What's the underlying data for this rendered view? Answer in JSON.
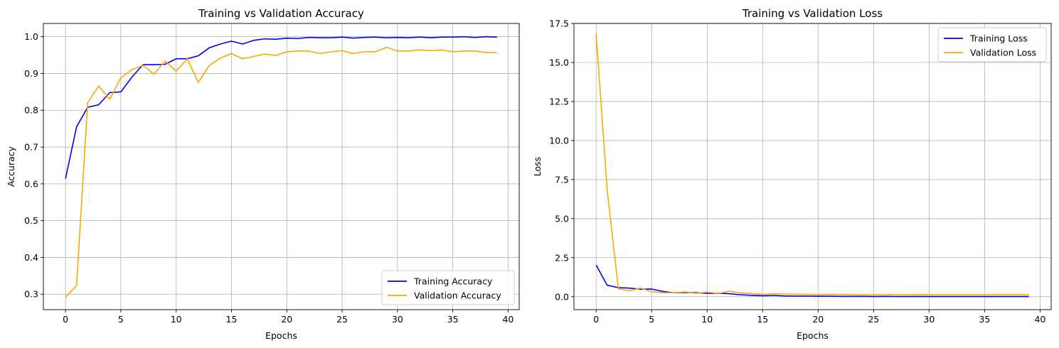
{
  "chart_data": [
    {
      "type": "line",
      "title": "Training vs Validation Accuracy",
      "xlabel": "Epochs",
      "ylabel": "Accuracy",
      "xlim": [
        -2,
        41
      ],
      "ylim": [
        0.258,
        1.036
      ],
      "xticks": [
        0,
        5,
        10,
        15,
        20,
        25,
        30,
        35,
        40
      ],
      "yticks": [
        0.3,
        0.4,
        0.5,
        0.6,
        0.7,
        0.8,
        0.9,
        1.0
      ],
      "xtick_labels": [
        "0",
        "5",
        "10",
        "15",
        "20",
        "25",
        "30",
        "35",
        "40"
      ],
      "ytick_labels": [
        "0.3",
        "0.4",
        "0.5",
        "0.6",
        "0.7",
        "0.8",
        "0.9",
        "1.0"
      ],
      "grid": true,
      "legend_position": "lower right",
      "x": [
        0,
        1,
        2,
        3,
        4,
        5,
        6,
        7,
        8,
        9,
        10,
        11,
        12,
        13,
        14,
        15,
        16,
        17,
        18,
        19,
        20,
        21,
        22,
        23,
        24,
        25,
        26,
        27,
        28,
        29,
        30,
        31,
        32,
        33,
        34,
        35,
        36,
        37,
        38,
        39
      ],
      "series": [
        {
          "name": "Training Accuracy",
          "color": "#0000ff",
          "values": [
            0.614,
            0.755,
            0.808,
            0.815,
            0.848,
            0.85,
            0.89,
            0.924,
            0.924,
            0.925,
            0.94,
            0.94,
            0.948,
            0.97,
            0.98,
            0.988,
            0.98,
            0.99,
            0.994,
            0.993,
            0.996,
            0.995,
            0.998,
            0.997,
            0.997,
            0.999,
            0.996,
            0.998,
            0.999,
            0.997,
            0.998,
            0.997,
            0.999,
            0.997,
            0.999,
            0.999,
            1.0,
            0.998,
            1.0,
            0.999
          ]
        },
        {
          "name": "Validation Accuracy",
          "color": "#ffa500",
          "values": [
            0.292,
            0.323,
            0.82,
            0.866,
            0.83,
            0.888,
            0.91,
            0.922,
            0.898,
            0.934,
            0.906,
            0.94,
            0.876,
            0.922,
            0.942,
            0.954,
            0.94,
            0.946,
            0.953,
            0.949,
            0.959,
            0.961,
            0.961,
            0.954,
            0.959,
            0.962,
            0.954,
            0.959,
            0.959,
            0.971,
            0.961,
            0.961,
            0.964,
            0.962,
            0.964,
            0.959,
            0.961,
            0.961,
            0.957,
            0.957
          ]
        }
      ]
    },
    {
      "type": "line",
      "title": "Training vs Validation Loss",
      "xlabel": "Epochs",
      "ylabel": "Loss",
      "xlim": [
        -2,
        41
      ],
      "ylim": [
        -0.83,
        17.5
      ],
      "xticks": [
        0,
        5,
        10,
        15,
        20,
        25,
        30,
        35,
        40
      ],
      "yticks": [
        0.0,
        2.5,
        5.0,
        7.5,
        10.0,
        12.5,
        15.0,
        17.5
      ],
      "xtick_labels": [
        "0",
        "5",
        "10",
        "15",
        "20",
        "25",
        "30",
        "35",
        "40"
      ],
      "ytick_labels": [
        "0.0",
        "2.5",
        "5.0",
        "7.5",
        "10.0",
        "12.5",
        "15.0",
        "17.5"
      ],
      "grid": true,
      "legend_position": "upper right",
      "x": [
        0,
        1,
        2,
        3,
        4,
        5,
        6,
        7,
        8,
        9,
        10,
        11,
        12,
        13,
        14,
        15,
        16,
        17,
        18,
        19,
        20,
        21,
        22,
        23,
        24,
        25,
        26,
        27,
        28,
        29,
        30,
        31,
        32,
        33,
        34,
        35,
        36,
        37,
        38,
        39
      ],
      "series": [
        {
          "name": "Training Loss",
          "color": "#0000ff",
          "values": [
            2.02,
            0.73,
            0.58,
            0.55,
            0.48,
            0.49,
            0.34,
            0.25,
            0.27,
            0.26,
            0.21,
            0.22,
            0.19,
            0.12,
            0.09,
            0.06,
            0.08,
            0.05,
            0.04,
            0.04,
            0.03,
            0.03,
            0.02,
            0.02,
            0.02,
            0.01,
            0.02,
            0.01,
            0.01,
            0.01,
            0.01,
            0.01,
            0.01,
            0.01,
            0.01,
            0.01,
            0.01,
            0.01,
            0.01,
            0.01
          ]
        },
        {
          "name": "Validation Loss",
          "color": "#ffa500",
          "values": [
            16.85,
            6.8,
            0.51,
            0.38,
            0.55,
            0.32,
            0.26,
            0.25,
            0.31,
            0.22,
            0.29,
            0.2,
            0.35,
            0.24,
            0.2,
            0.15,
            0.19,
            0.17,
            0.16,
            0.15,
            0.14,
            0.15,
            0.14,
            0.13,
            0.12,
            0.12,
            0.13,
            0.13,
            0.12,
            0.13,
            0.12,
            0.12,
            0.12,
            0.12,
            0.12,
            0.13,
            0.13,
            0.13,
            0.13,
            0.13
          ]
        }
      ]
    }
  ]
}
